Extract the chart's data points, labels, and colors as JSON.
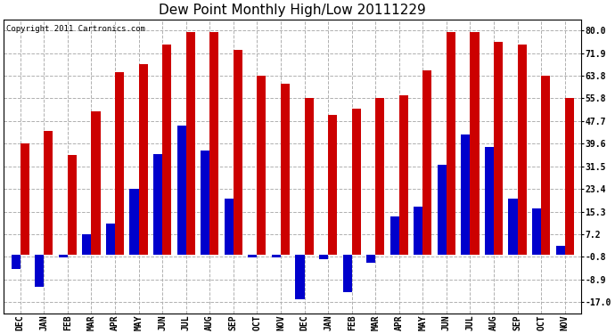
{
  "title": "Dew Point Monthly High/Low 20111229",
  "copyright": "Copyright 2011 Cartronics.com",
  "categories": [
    "DEC",
    "JAN",
    "FEB",
    "MAR",
    "APR",
    "MAY",
    "JUN",
    "JUL",
    "AUG",
    "SEP",
    "OCT",
    "NOV",
    "DEC",
    "JAN",
    "FEB",
    "MAR",
    "APR",
    "MAY",
    "JUN",
    "JUL",
    "AUG",
    "SEP",
    "OCT",
    "NOV"
  ],
  "highs": [
    39.6,
    44.0,
    35.5,
    51.0,
    65.0,
    68.0,
    75.0,
    79.5,
    79.5,
    73.0,
    63.8,
    61.0,
    55.8,
    50.0,
    52.0,
    56.0,
    57.0,
    65.8,
    79.5,
    79.5,
    76.0,
    75.0,
    63.8,
    55.8
  ],
  "lows": [
    -5.0,
    -11.5,
    -1.0,
    7.2,
    11.0,
    23.4,
    36.0,
    46.0,
    37.0,
    20.0,
    -1.0,
    -1.0,
    -16.0,
    -1.5,
    -13.5,
    -3.0,
    13.5,
    17.0,
    32.0,
    43.0,
    38.5,
    20.0,
    16.5,
    3.0
  ],
  "high_color": "#cc0000",
  "low_color": "#0000cc",
  "bg_color": "#ffffff",
  "grid_color": "#b0b0b0",
  "yticks": [
    -17.0,
    -8.9,
    -0.8,
    7.2,
    15.3,
    23.4,
    31.5,
    39.6,
    47.7,
    55.8,
    63.8,
    71.9,
    80.0
  ],
  "ylim": [
    -21,
    84
  ],
  "bar_width": 0.38,
  "title_fontsize": 11,
  "label_fontsize": 7
}
